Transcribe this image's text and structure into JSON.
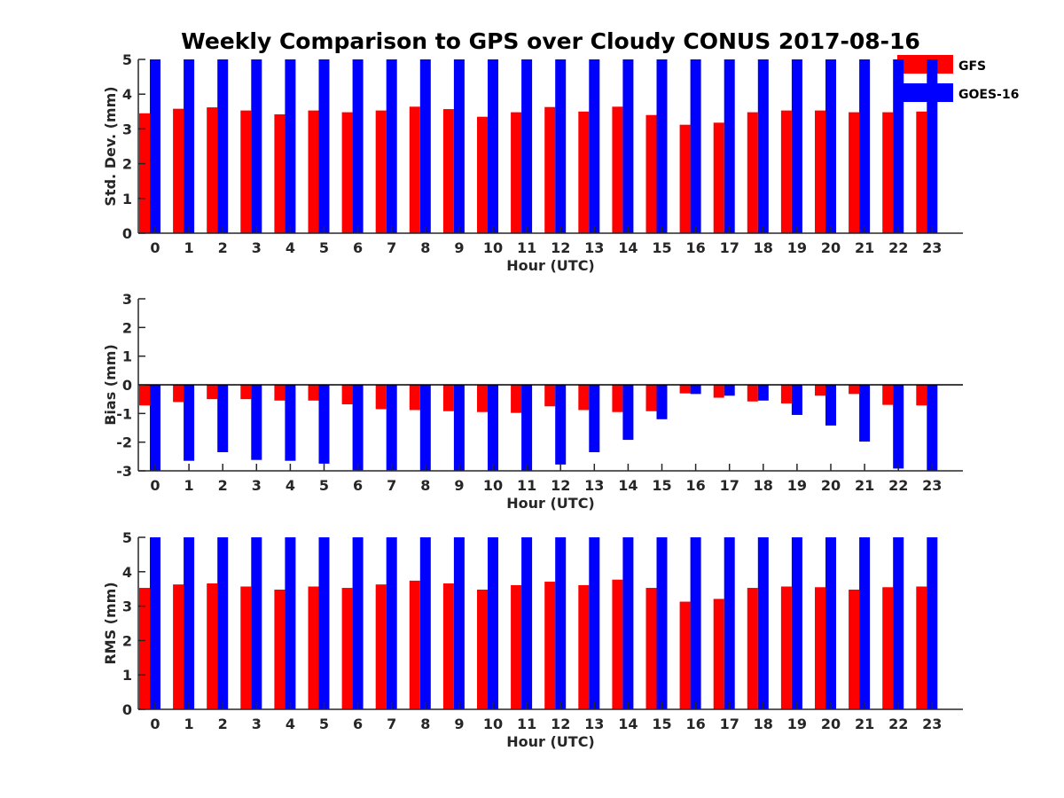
{
  "chart_data": {
    "title": "Weekly Comparison to GPS over Cloudy CONUS 2017-08-16",
    "legend": {
      "placement": "top-right",
      "entries": [
        "GFS",
        "GOES-16"
      ]
    },
    "colors": {
      "GFS": "#ff0000",
      "GOES-16": "#0000ff",
      "axis": "#262626"
    },
    "panels": [
      {
        "type": "bar",
        "xlabel": "Hour (UTC)",
        "ylabel": "Std. Dev. (mm)",
        "ylim": [
          0,
          5
        ],
        "yticks": [
          0,
          1,
          2,
          3,
          4,
          5
        ],
        "grid": false,
        "categories": [
          "0",
          "1",
          "2",
          "3",
          "4",
          "5",
          "6",
          "7",
          "8",
          "9",
          "10",
          "11",
          "12",
          "13",
          "14",
          "15",
          "16",
          "17",
          "18",
          "19",
          "20",
          "21",
          "22",
          "23"
        ],
        "series": [
          {
            "name": "GFS",
            "values": [
              3.45,
              3.58,
              3.62,
              3.53,
              3.42,
              3.53,
              3.48,
              3.53,
              3.64,
              3.57,
              3.35,
              3.48,
              3.63,
              3.5,
              3.64,
              3.4,
              3.12,
              3.18,
              3.48,
              3.53,
              3.53,
              3.48,
              3.48,
              3.5
            ]
          },
          {
            "name": "GOES-16",
            "values": [
              5,
              5,
              5,
              5,
              5,
              5,
              5,
              5,
              5,
              5,
              5,
              5,
              5,
              5,
              5,
              5,
              5,
              5,
              5,
              5,
              5,
              5,
              5,
              5
            ]
          }
        ]
      },
      {
        "type": "bar",
        "xlabel": "Hour (UTC)",
        "ylabel": "Bias (mm)",
        "ylim": [
          -3,
          3
        ],
        "yticks": [
          -3,
          -2,
          -1,
          0,
          1,
          2,
          3
        ],
        "grid": false,
        "categories": [
          "0",
          "1",
          "2",
          "3",
          "4",
          "5",
          "6",
          "7",
          "8",
          "9",
          "10",
          "11",
          "12",
          "13",
          "14",
          "15",
          "16",
          "17",
          "18",
          "19",
          "20",
          "21",
          "22",
          "23"
        ],
        "series": [
          {
            "name": "GFS",
            "values": [
              -0.72,
              -0.6,
              -0.5,
              -0.5,
              -0.55,
              -0.55,
              -0.68,
              -0.85,
              -0.88,
              -0.92,
              -0.95,
              -0.98,
              -0.75,
              -0.88,
              -0.95,
              -0.92,
              -0.3,
              -0.45,
              -0.58,
              -0.65,
              -0.38,
              -0.32,
              -0.7,
              -0.72
            ]
          },
          {
            "name": "GOES-16",
            "values": [
              -3.0,
              -2.65,
              -2.35,
              -2.62,
              -2.65,
              -2.75,
              -2.98,
              -2.98,
              -3.0,
              -3.0,
              -3.0,
              -3.0,
              -2.78,
              -2.35,
              -1.92,
              -1.2,
              -0.32,
              -0.38,
              -0.55,
              -1.05,
              -1.42,
              -1.98,
              -2.92,
              -3.0
            ]
          }
        ]
      },
      {
        "type": "bar",
        "xlabel": "Hour (UTC)",
        "ylabel": "RMS (mm)",
        "ylim": [
          0,
          5
        ],
        "yticks": [
          0,
          1,
          2,
          3,
          4,
          5
        ],
        "grid": false,
        "categories": [
          "0",
          "1",
          "2",
          "3",
          "4",
          "5",
          "6",
          "7",
          "8",
          "9",
          "10",
          "11",
          "12",
          "13",
          "14",
          "15",
          "16",
          "17",
          "18",
          "19",
          "20",
          "21",
          "22",
          "23"
        ],
        "series": [
          {
            "name": "GFS",
            "values": [
              3.53,
              3.63,
              3.66,
              3.57,
              3.48,
              3.57,
              3.53,
              3.63,
              3.74,
              3.66,
              3.48,
              3.61,
              3.71,
              3.61,
              3.77,
              3.53,
              3.13,
              3.21,
              3.53,
              3.57,
              3.55,
              3.48,
              3.55,
              3.57
            ]
          },
          {
            "name": "GOES-16",
            "values": [
              5,
              5,
              5,
              5,
              5,
              5,
              5,
              5,
              5,
              5,
              5,
              5,
              5,
              5,
              5,
              5,
              5,
              5,
              5,
              5,
              5,
              5,
              5,
              5
            ]
          }
        ]
      }
    ]
  }
}
